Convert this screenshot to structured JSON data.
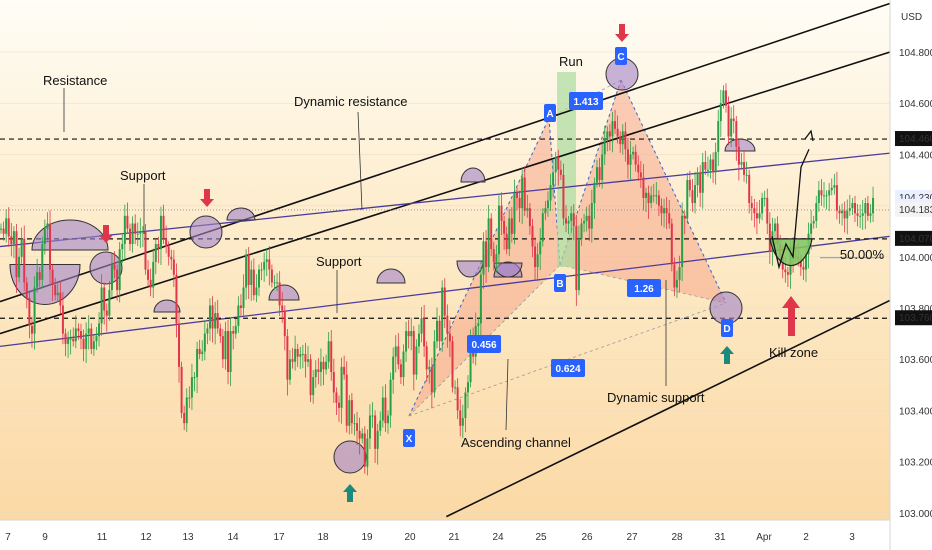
{
  "chart_data": {
    "type": "candlestick",
    "currency": "USD",
    "y_ticks": [
      "104.800",
      "104.600",
      "104.400",
      "104.200",
      "104.000",
      "103.800",
      "103.600",
      "103.400",
      "103.200",
      "103.000"
    ],
    "y_tick_values": [
      104.8,
      104.6,
      104.4,
      104.2,
      104.0,
      103.8,
      103.6,
      103.4,
      103.2,
      103.0
    ],
    "ylim": [
      102.96,
      104.98
    ],
    "x_ticks": [
      "7",
      "9",
      "11",
      "12",
      "13",
      "14",
      "17",
      "18",
      "19",
      "20",
      "21",
      "24",
      "25",
      "26",
      "27",
      "28",
      "31",
      "Apr",
      "2",
      "3"
    ],
    "price_labels": [
      {
        "text": "104.460",
        "value": 104.46,
        "style": "black"
      },
      {
        "text": "104.230",
        "value": 104.23,
        "style": "blue"
      },
      {
        "text": "02:24",
        "value": 104.195,
        "style": "blue"
      },
      {
        "text": "104.183",
        "value": 104.183,
        "style": "gray"
      },
      {
        "text": "104.070",
        "value": 104.07,
        "style": "black"
      },
      {
        "text": "103.760",
        "value": 103.76,
        "style": "black"
      }
    ],
    "horizontal_levels": [
      104.46,
      104.07,
      103.76
    ],
    "fib_level": {
      "value": 104.0,
      "label": "50.00%"
    },
    "pattern_points": [
      "X",
      "A",
      "B",
      "C",
      "D"
    ],
    "ratios": [
      "1.413",
      "0.456",
      "0.624",
      "1.26"
    ],
    "series": [
      {
        "values": [
          104.11,
          104.09,
          104.15,
          104.08,
          104.05,
          104.1,
          103.92,
          104.0,
          104.07,
          103.9,
          103.84,
          103.73,
          103.7,
          103.88,
          103.94,
          103.91,
          104.05,
          104.11,
          104.13,
          103.95,
          103.89,
          103.85,
          103.86,
          103.81,
          103.7,
          103.66,
          103.68,
          103.68,
          103.67,
          103.72,
          103.71,
          103.68,
          103.64,
          103.7,
          103.72,
          103.64,
          103.67,
          103.69,
          103.74,
          103.88,
          103.79,
          103.77,
          103.87,
          103.97,
          103.95,
          103.87,
          104.03,
          104.05,
          104.16,
          104.11,
          104.05,
          104.13,
          104.09,
          104.09,
          104.1,
          104.1,
          103.95,
          103.91,
          103.88,
          103.98,
          104.05,
          104.03,
          104.16,
          104.07,
          104.04,
          104.0,
          103.99,
          103.93,
          103.74,
          103.57,
          103.39,
          103.35,
          103.45,
          103.45,
          103.53,
          103.53,
          103.64,
          103.62,
          103.63,
          103.7,
          103.72,
          103.81,
          103.72,
          103.78,
          103.72,
          103.69,
          103.6,
          103.71,
          103.55,
          103.71,
          103.7,
          103.73,
          103.81,
          103.8,
          103.88,
          104.01,
          103.89,
          103.95,
          103.85,
          103.88,
          103.95,
          103.95,
          103.98,
          103.99,
          103.95,
          103.9,
          103.9,
          103.9,
          103.81,
          103.79,
          103.69,
          103.52,
          103.6,
          103.59,
          103.64,
          103.61,
          103.62,
          103.62,
          103.59,
          103.6,
          103.46,
          103.53,
          103.56,
          103.55,
          103.59,
          103.56,
          103.59,
          103.67,
          103.55,
          103.47,
          103.43,
          103.41,
          103.57,
          103.54,
          103.34,
          103.44,
          103.35,
          103.35,
          103.32,
          103.29,
          103.31,
          103.18,
          103.29,
          103.38,
          103.38,
          103.25,
          103.32,
          103.36,
          103.45,
          103.35,
          103.38,
          103.52,
          103.61,
          103.65,
          103.58,
          103.53,
          103.63,
          103.71,
          103.69,
          103.71,
          103.54,
          103.65,
          103.7,
          103.76,
          103.65,
          103.56,
          103.57,
          103.47,
          103.67,
          103.75,
          103.67,
          103.88,
          103.77,
          103.7,
          103.67,
          103.49,
          103.49,
          103.4,
          103.34,
          103.37,
          103.47,
          103.51,
          103.68,
          103.61,
          103.73,
          103.74,
          103.93,
          104.06,
          103.96,
          104.15,
          104.03,
          103.98,
          104.01,
          104.2,
          104.14,
          104.09,
          104.03,
          104.15,
          104.09,
          104.25,
          104.23,
          104.19,
          104.31,
          104.18,
          104.19,
          104.12,
          104.04,
          103.96,
          104.01,
          104.06,
          104.17,
          104.19,
          104.22,
          104.28,
          104.33,
          104.39,
          104.34,
          104.32,
          104.15,
          104.13,
          104.14,
          104.17,
          104.12,
          103.87,
          104.07,
          104.13,
          104.14,
          104.16,
          104.11,
          104.21,
          104.29,
          104.35,
          104.3,
          104.4,
          104.46,
          104.49,
          104.47,
          104.53,
          104.5,
          104.47,
          104.44,
          104.49,
          104.42,
          104.36,
          104.4,
          104.41,
          104.36,
          104.33,
          104.31,
          104.23,
          104.25,
          104.21,
          104.24,
          104.24,
          104.24,
          104.2,
          104.17,
          104.19,
          104.17,
          104.13,
          103.97,
          103.88,
          103.91,
          103.96,
          104.16,
          104.15,
          104.3,
          104.26,
          104.21,
          104.28,
          104.33,
          104.25,
          104.37,
          104.34,
          104.34,
          104.38,
          104.33,
          104.41,
          104.53,
          104.6,
          104.65,
          104.59,
          104.47,
          104.54,
          104.53,
          104.43,
          104.36,
          104.37,
          104.32,
          104.32,
          104.21,
          104.19,
          104.17,
          104.15,
          104.17,
          104.23,
          104.23,
          104.13,
          104.02,
          104.1,
          104.13,
          104.05,
          104.0,
          103.95,
          103.94,
          103.93,
          104.04,
          104.0,
          104.0,
          103.99,
          103.96,
          103.95,
          104.01,
          104.09,
          104.13,
          104.14,
          104.21,
          104.26,
          104.24,
          104.24,
          104.24,
          104.26,
          104.27,
          104.28,
          104.18,
          104.17,
          104.18,
          104.15,
          104.18,
          104.19,
          104.21,
          104.17,
          104.16,
          104.16,
          104.17,
          104.21,
          104.16,
          104.17,
          104.23
        ]
      }
    ],
    "forecast_path": [
      [
        0,
        104.08
      ],
      [
        7,
        103.96
      ],
      [
        14,
        104.05
      ],
      [
        21,
        104.0
      ],
      [
        29,
        104.35
      ],
      [
        37,
        104.42
      ]
    ],
    "overlays": [
      {
        "style": "black",
        "p1": [
          0,
          103.825
        ],
        "p2": [
          345,
          104.99
        ]
      },
      {
        "style": "black",
        "p1": [
          0,
          103.7
        ],
        "p2": [
          345,
          104.8
        ]
      },
      {
        "style": "black",
        "p1": [
          173,
          102.985
        ],
        "p2": [
          345,
          103.83
        ]
      },
      {
        "style": "purple",
        "p1": [
          0,
          104.04
        ],
        "p2": [
          345,
          104.405
        ]
      },
      {
        "style": "purple",
        "p1": [
          0,
          103.65
        ],
        "p2": [
          345,
          104.08
        ]
      }
    ],
    "annotations": [
      "Resistance",
      "Dynamic resistance",
      "Support",
      "Support",
      "Run",
      "Ascending channel",
      "Dynamic support",
      "Kill zone"
    ]
  }
}
